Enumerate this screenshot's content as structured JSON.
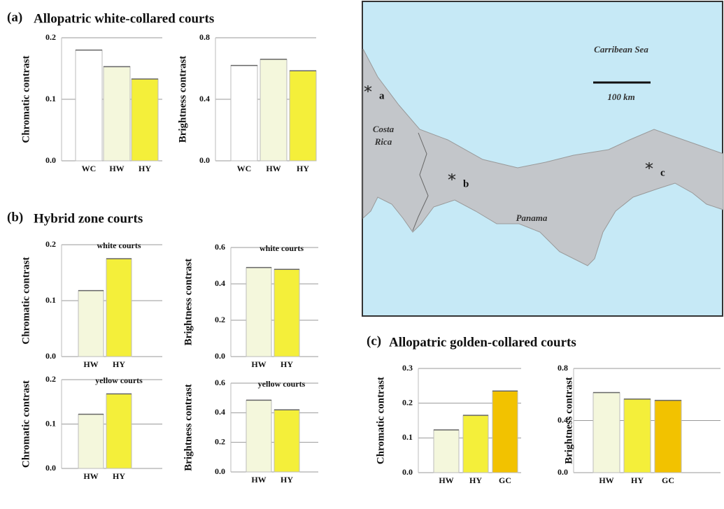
{
  "panels": [
    {
      "letter": "(a)",
      "title": "Allopatric white-collared courts"
    },
    {
      "letter": "(b)",
      "title": "Hybrid zone courts"
    },
    {
      "letter": "(c)",
      "title": "Allopatric golden-collared courts"
    }
  ],
  "map": {
    "sea_label": "Carribean Sea",
    "scale_label": "100 km",
    "country_labels": [
      [
        "Costa",
        "Rica"
      ],
      [
        "Panama"
      ]
    ],
    "sites": [
      "a",
      "b",
      "c"
    ]
  },
  "chart_data": [
    {
      "type": "bar",
      "ylabel": "Chromatic contrast",
      "categories": [
        "WC",
        "HW",
        "HY"
      ],
      "values": [
        0.18,
        0.153,
        0.133
      ],
      "colors": [
        "#ffffff",
        "#f4f7dc",
        "#f4ef3a"
      ],
      "ylim": [
        0,
        0.2
      ],
      "yticks": [
        {
          "value": 0,
          "label": "0.0"
        },
        0.1,
        0.2
      ],
      "grid": true
    },
    {
      "type": "bar",
      "ylabel": "Brightness contrast",
      "categories": [
        "WC",
        "HW",
        "HY"
      ],
      "values": [
        0.62,
        0.66,
        0.585
      ],
      "colors": [
        "#ffffff",
        "#f4f7dc",
        "#f4ef3a"
      ],
      "ylim": [
        0,
        0.8
      ],
      "yticks": [
        {
          "value": 0,
          "label": "0.0"
        },
        0.4,
        0.8
      ],
      "grid": true
    },
    {
      "type": "bar",
      "title": "white courts",
      "ylabel": "Chromatic contrast",
      "categories": [
        "HW",
        "HY"
      ],
      "values": [
        0.118,
        0.175
      ],
      "colors": [
        "#f4f7dc",
        "#f4ef3a"
      ],
      "ylim": [
        0,
        0.2
      ],
      "yticks": [
        {
          "value": 0,
          "label": "0.0"
        },
        0.1,
        0.2
      ],
      "grid": true
    },
    {
      "type": "bar",
      "title": "white courts",
      "ylabel": "Brightness contrast",
      "categories": [
        "HW",
        "HY"
      ],
      "values": [
        0.49,
        0.48
      ],
      "colors": [
        "#f4f7dc",
        "#f4ef3a"
      ],
      "ylim": [
        0,
        0.6
      ],
      "yticks": [
        {
          "value": 0,
          "label": "0.0"
        },
        0.2,
        0.4,
        0.6
      ],
      "grid": true
    },
    {
      "type": "bar",
      "title": "yellow courts",
      "ylabel": "Chromatic contrast",
      "categories": [
        "HW",
        "HY"
      ],
      "values": [
        0.122,
        0.168
      ],
      "colors": [
        "#f4f7dc",
        "#f4ef3a"
      ],
      "ylim": [
        0,
        0.2
      ],
      "yticks": [
        {
          "value": 0,
          "label": "0.0"
        },
        0.1,
        0.2
      ],
      "grid": true
    },
    {
      "type": "bar",
      "title": "yellow courts",
      "ylabel": "Brightness contrast",
      "categories": [
        "HW",
        "HY"
      ],
      "values": [
        0.485,
        0.42
      ],
      "colors": [
        "#f4f7dc",
        "#f4ef3a"
      ],
      "ylim": [
        0,
        0.6
      ],
      "yticks": [
        {
          "value": 0,
          "label": "0.0"
        },
        0.2,
        0.4,
        0.6
      ],
      "grid": true
    },
    {
      "type": "bar",
      "ylabel": "Chromatic contrast",
      "categories": [
        "HW",
        "HY",
        "GC"
      ],
      "values": [
        0.123,
        0.165,
        0.235
      ],
      "colors": [
        "#f4f7dc",
        "#f4ef3a",
        "#f2c200"
      ],
      "ylim": [
        0,
        0.3
      ],
      "yticks": [
        {
          "value": 0,
          "label": "0.0"
        },
        0.1,
        0.2,
        0.3
      ],
      "grid": true
    },
    {
      "type": "bar",
      "ylabel": "Brightness contrast",
      "categories": [
        "HW",
        "HY",
        "GC"
      ],
      "values": [
        0.615,
        0.565,
        0.555
      ],
      "colors": [
        "#f4f7dc",
        "#f4ef3a",
        "#f2c200"
      ],
      "ylim": [
        0,
        0.8
      ],
      "yticks": [
        {
          "value": 0,
          "label": "0.0"
        },
        0.4,
        0.8
      ],
      "grid": true
    }
  ]
}
